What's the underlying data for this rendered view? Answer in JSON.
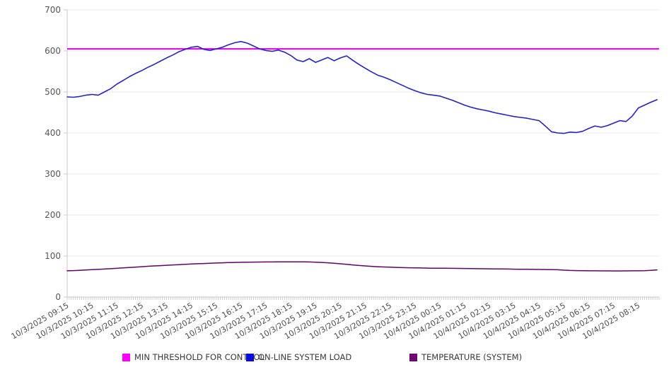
{
  "chart_data": {
    "type": "line",
    "title": "",
    "grid": "horizontal",
    "legend_position": "bottom-center",
    "x_axis": {
      "unit": "time",
      "minor_tick_interval_minutes": 5,
      "total_span_minutes": 1430,
      "tick_labels": [
        "10/3/2025 09:15",
        "10/3/2025 10:15",
        "10/3/2025 11:15",
        "10/3/2025 12:15",
        "10/3/2025 13:15",
        "10/3/2025 14:15",
        "10/3/2025 15:15",
        "10/3/2025 16:15",
        "10/3/2025 17:15",
        "10/3/2025 18:15",
        "10/3/2025 19:15",
        "10/3/2025 20:15",
        "10/3/2025 21:15",
        "10/3/2025 22:15",
        "10/3/2025 23:15",
        "10/4/2025 00:15",
        "10/4/2025 01:15",
        "10/4/2025 02:15",
        "10/4/2025 03:15",
        "10/4/2025 04:15",
        "10/4/2025 05:15",
        "10/4/2025 06:15",
        "10/4/2025 07:15",
        "10/4/2025 08:15"
      ]
    },
    "y_axis": {
      "min": 0,
      "max": 700,
      "ticks": [
        0,
        100,
        200,
        300,
        400,
        500,
        600,
        700
      ]
    },
    "series": [
      {
        "name": "MIN THRESHOLD FOR CONTROL",
        "type": "threshold",
        "color": "#E000E0",
        "swatch_color": "#FB00FB",
        "value": 605
      },
      {
        "name": "ON-LINE SYSTEM LOAD",
        "type": "line",
        "color": "#2323CC",
        "swatch_color": "#0A0ADF",
        "interval_minutes": 15,
        "start_label": "10/3/2025 09:15",
        "values": [
          488,
          487,
          489,
          492,
          494,
          492,
          500,
          508,
          519,
          528,
          537,
          545,
          552,
          560,
          567,
          575,
          583,
          590,
          598,
          604,
          609,
          611,
          604,
          601,
          605,
          609,
          615,
          620,
          623,
          619,
          612,
          605,
          601,
          599,
          602,
          597,
          589,
          578,
          574,
          581,
          572,
          578,
          584,
          576,
          583,
          588,
          577,
          567,
          558,
          549,
          541,
          536,
          530,
          523,
          516,
          509,
          503,
          498,
          494,
          492,
          490,
          485,
          480,
          474,
          468,
          463,
          459,
          456,
          453,
          449,
          446,
          443,
          440,
          438,
          436,
          433,
          430,
          417,
          403,
          400,
          399,
          402,
          401,
          404,
          411,
          417,
          414,
          418,
          424,
          430,
          428,
          441,
          461,
          468,
          475,
          481
        ]
      },
      {
        "name": "TEMPERATURE (SYSTEM)",
        "type": "line",
        "color": "#670067",
        "swatch_color": "#730073",
        "interval_minutes": 15,
        "start_label": "10/3/2025 09:15",
        "values": [
          64,
          64.5,
          65.2,
          66,
          66.8,
          67.5,
          68.3,
          69.2,
          70,
          71,
          72,
          73,
          74,
          75,
          75.8,
          76.6,
          77.4,
          78.2,
          79,
          79.8,
          80.5,
          81.2,
          81.8,
          82.4,
          83,
          83.5,
          83.9,
          84.3,
          84.6,
          84.9,
          85.1,
          85.3,
          85.5,
          85.6,
          85.7,
          85.8,
          85.8,
          85.8,
          85.7,
          85.5,
          85,
          84.3,
          83.4,
          82.3,
          81,
          79.6,
          78.2,
          76.9,
          75.8,
          74.8,
          74,
          73.3,
          72.7,
          72.2,
          71.8,
          71.4,
          71.1,
          70.8,
          70.6,
          70.4,
          70.2,
          70.1,
          70,
          69.8,
          69.6,
          69.4,
          69.2,
          69,
          68.8,
          68.6,
          68.4,
          68.2,
          68,
          67.8,
          67.6,
          67.4,
          67.2,
          67,
          66.8,
          66.6,
          65.5,
          64.8,
          64.4,
          64.2,
          64,
          63.9,
          63.8,
          63.8,
          63.7,
          63.7,
          63.8,
          63.9,
          64,
          64.3,
          65,
          66.2
        ]
      }
    ],
    "colors": {
      "background": "#ffffff",
      "gridline": "#e8e8e8",
      "axis_line": "#c9c9c9",
      "minor_tick": "#bbbbbb",
      "y_label_text": "#555555",
      "x_label_text": "#4d4d4d",
      "legend_text": "#383838"
    }
  }
}
